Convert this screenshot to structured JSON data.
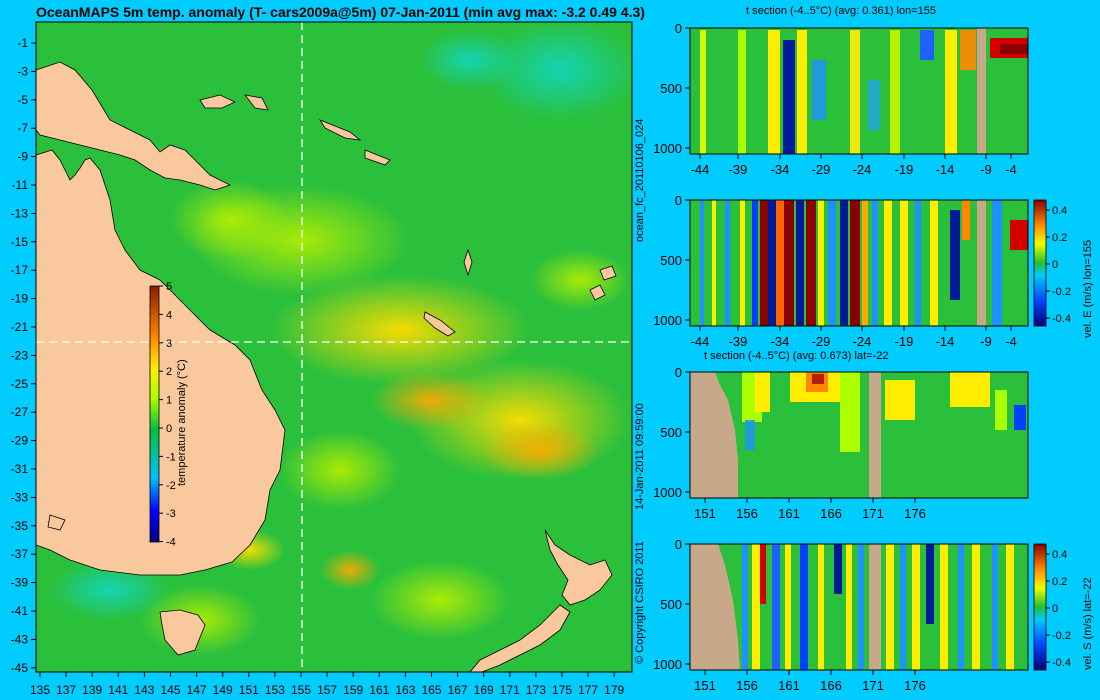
{
  "title": "OceanMAPS 5m temp. anomaly (T- cars2009a@5m) 07-Jan-2011 (min avg max: -3.2 0.49 4.3)",
  "side_texts": {
    "run_id": "ocean_fc_20110106_024",
    "issued": "14-Jan-2011 09:59:00",
    "copyright": "© Copyright CSIRO 2011"
  },
  "colors": {
    "background": "#00ccff",
    "land": "#f9c89d",
    "section_land": "#c7a98a",
    "ocean_base": "#2bc03c"
  },
  "chart_data": [
    {
      "type": "heatmap",
      "name": "map",
      "title": "OceanMAPS 5m temp. anomaly (T- cars2009a@5m) 07-Jan-2011 (min avg max: -3.2 0.49 4.3)",
      "x_ticks": [
        "135",
        "137",
        "139",
        "141",
        "143",
        "145",
        "147",
        "149",
        "151",
        "153",
        "155",
        "157",
        "159",
        "161",
        "163",
        "165",
        "167",
        "169",
        "171",
        "173",
        "175",
        "177",
        "179"
      ],
      "y_ticks": [
        "-1",
        "-3",
        "-5",
        "-7",
        "-9",
        "-11",
        "-13",
        "-15",
        "-17",
        "-19",
        "-21",
        "-23",
        "-25",
        "-27",
        "-29",
        "-31",
        "-33",
        "-35",
        "-37",
        "-39",
        "-41",
        "-43",
        "-45"
      ],
      "xlim": [
        135,
        180
      ],
      "ylim": [
        -45,
        0
      ],
      "guide_lines": {
        "lon": 155,
        "lat": -22
      },
      "colorbar": {
        "label": "temperature anomaly (°C)",
        "ticks": [
          "5",
          "4",
          "3",
          "2",
          "1",
          "0",
          "-1",
          "-2",
          "-3",
          "-4"
        ],
        "range": [
          -4,
          5
        ]
      }
    },
    {
      "type": "heatmap",
      "name": "t-section-lon",
      "title": "t section (-4..5°C) (avg: 0.361) lon=155",
      "x_ticks": [
        "-44",
        "-39",
        "-34",
        "-29",
        "-24",
        "-19",
        "-14",
        "-9",
        "-4"
      ],
      "y_ticks": [
        "0",
        "500",
        "1000"
      ],
      "xlim": [
        -45,
        0
      ],
      "ylim": [
        1000,
        0
      ]
    },
    {
      "type": "heatmap",
      "name": "vel-e-section",
      "title": "",
      "x_ticks": [
        "-44",
        "-39",
        "-34",
        "-29",
        "-24",
        "-19",
        "-14",
        "-9",
        "-4"
      ],
      "y_ticks": [
        "0",
        "500",
        "1000"
      ],
      "colorbar": {
        "label": "vel. E (m/s) lon=155",
        "ticks": [
          "0.4",
          "0.2",
          "0",
          "-0.2",
          "-0.4"
        ],
        "range": [
          -0.4,
          0.4
        ]
      }
    },
    {
      "type": "heatmap",
      "name": "t-section-lat",
      "title": "t section (-4..5°C) (avg: 0.673) lat=-22",
      "x_ticks": [
        "151",
        "156",
        "161",
        "166",
        "171",
        "176"
      ],
      "y_ticks": [
        "0",
        "500",
        "1000"
      ],
      "xlim": [
        150,
        180
      ],
      "ylim": [
        1000,
        0
      ]
    },
    {
      "type": "heatmap",
      "name": "vel-s-section",
      "title": "",
      "x_ticks": [
        "151",
        "156",
        "161",
        "166",
        "171",
        "176"
      ],
      "y_ticks": [
        "0",
        "500",
        "1000"
      ],
      "colorbar": {
        "label": "vel. S (m/s) lat=-22",
        "ticks": [
          "0.4",
          "0.2",
          "0",
          "-0.2",
          "-0.4"
        ],
        "range": [
          -0.4,
          0.4
        ]
      }
    }
  ]
}
